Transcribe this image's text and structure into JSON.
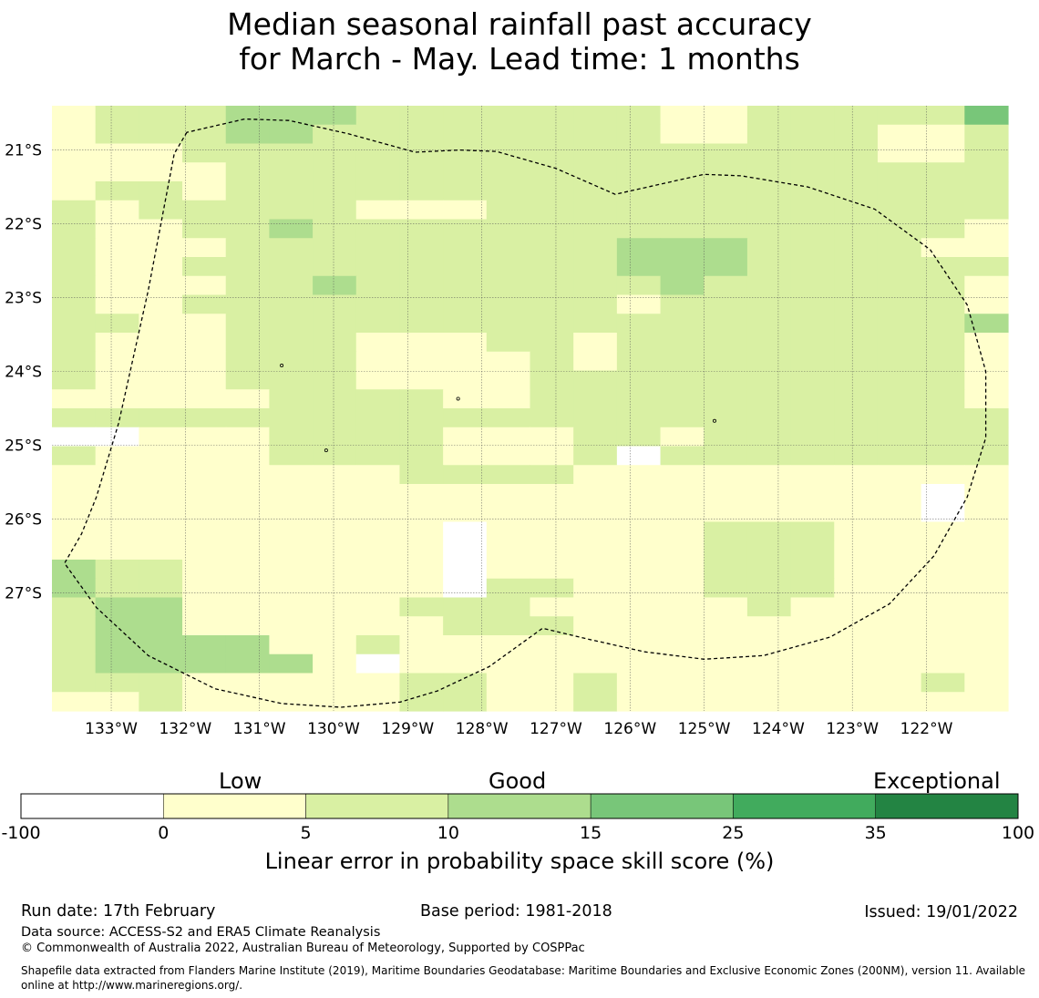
{
  "title_line1": "Median seasonal rainfall past accuracy",
  "title_line2": "for March - May. Lead time: 1 months",
  "map": {
    "lon_range": [
      -133.8,
      -120.9
    ],
    "lat_range": [
      -28.6,
      -20.4
    ],
    "lon_ticks": [
      {
        "value": -133,
        "label": "133°W"
      },
      {
        "value": -132,
        "label": "132°W"
      },
      {
        "value": -131,
        "label": "131°W"
      },
      {
        "value": -130,
        "label": "130°W"
      },
      {
        "value": -129,
        "label": "129°W"
      },
      {
        "value": -128,
        "label": "128°W"
      },
      {
        "value": -127,
        "label": "127°W"
      },
      {
        "value": -126,
        "label": "126°W"
      },
      {
        "value": -125,
        "label": "125°W"
      },
      {
        "value": -124,
        "label": "124°W"
      },
      {
        "value": -123,
        "label": "123°W"
      },
      {
        "value": -122,
        "label": "122°W"
      }
    ],
    "lat_ticks": [
      {
        "value": -21,
        "label": "21°S"
      },
      {
        "value": -22,
        "label": "22°S"
      },
      {
        "value": -23,
        "label": "23°S"
      },
      {
        "value": -24,
        "label": "24°S"
      },
      {
        "value": -25,
        "label": "25°S"
      },
      {
        "value": -26,
        "label": "26°S"
      },
      {
        "value": -27,
        "label": "27°S"
      }
    ],
    "grid_rows_note": "category index per cell: 0 = below 0, 1 = 0-5, 2 = 5-10, 3 = 10-15, 4 = 15-25",
    "grid": [
      "1222333222222211222224",
      "1222332222222211222112",
      "1112222222222222222112",
      "1111222222222222222222",
      "1221222222222222222222",
      "2122222111222222222222",
      "2112232222222222222221",
      "2111222222222333222211",
      "2112222222222333222222",
      "2111223222222232222221",
      "2112222222222122222221",
      "2211222222222222222223",
      "2111222111221222222221",
      "2111222111121222222221",
      "2111222111122222222221",
      "1111122221122222222221",
      "2222222222222222222222",
      "0011122221112212222222",
      "2111122221112022222222",
      "1111111122221111111111",
      "1111111111111111111101",
      "1111111111111111111101",
      "1111111110111112221111",
      "1111111110111112221111",
      "3221111110111112221111",
      "3221111110221112221111",
      "2331111122211111211111",
      "2331111112221111111111",
      "2333311211111111111111",
      "2333331011111111111111",
      "2221111122112111111121",
      "1121111122112111111111"
    ],
    "eez_boundary": [
      [
        -131.98,
        -20.76
      ],
      [
        -132.15,
        -21.05
      ],
      [
        -132.5,
        -22.9
      ],
      [
        -132.9,
        -24.7
      ],
      [
        -133.2,
        -25.7
      ],
      [
        -133.4,
        -26.2
      ],
      [
        -133.63,
        -26.6
      ],
      [
        -133.2,
        -27.2
      ],
      [
        -132.5,
        -27.85
      ],
      [
        -131.6,
        -28.3
      ],
      [
        -130.7,
        -28.5
      ],
      [
        -129.9,
        -28.55
      ],
      [
        -129.1,
        -28.48
      ],
      [
        -128.6,
        -28.33
      ],
      [
        -127.9,
        -28.0
      ],
      [
        -127.18,
        -27.48
      ],
      [
        -126.6,
        -27.62
      ],
      [
        -125.8,
        -27.8
      ],
      [
        -125.0,
        -27.9
      ],
      [
        -124.2,
        -27.85
      ],
      [
        -123.3,
        -27.6
      ],
      [
        -122.5,
        -27.15
      ],
      [
        -121.9,
        -26.5
      ],
      [
        -121.45,
        -25.7
      ],
      [
        -121.2,
        -24.9
      ],
      [
        -121.2,
        -24.0
      ],
      [
        -121.45,
        -23.1
      ],
      [
        -121.95,
        -22.35
      ],
      [
        -122.7,
        -21.8
      ],
      [
        -123.6,
        -21.5
      ],
      [
        -124.5,
        -21.35
      ],
      [
        -125.0,
        -21.33
      ],
      [
        -126.2,
        -21.6
      ],
      [
        -127.0,
        -21.25
      ],
      [
        -127.8,
        -21.02
      ],
      [
        -128.3,
        -21.0
      ],
      [
        -128.9,
        -21.03
      ],
      [
        -129.8,
        -20.78
      ],
      [
        -130.6,
        -20.6
      ],
      [
        -131.2,
        -20.58
      ],
      [
        -131.98,
        -20.76
      ]
    ],
    "islands": [
      [
        -128.32,
        -24.37
      ],
      [
        -124.86,
        -24.67
      ],
      [
        -130.1,
        -25.07
      ],
      [
        -130.7,
        -23.92
      ]
    ]
  },
  "colorbar": {
    "label_low": "Low",
    "label_good": "Good",
    "label_exceptional": "Exceptional",
    "bins": [
      {
        "from": "-100",
        "to": "0",
        "color": "#ffffff"
      },
      {
        "from": "0",
        "to": "5",
        "color": "#ffffcc"
      },
      {
        "from": "5",
        "to": "10",
        "color": "#d9f0a3"
      },
      {
        "from": "10",
        "to": "15",
        "color": "#addd8e"
      },
      {
        "from": "15",
        "to": "25",
        "color": "#78c679"
      },
      {
        "from": "25",
        "to": "35",
        "color": "#41ab5d"
      },
      {
        "from": "35",
        "to": "100",
        "color": "#238443"
      }
    ],
    "ticks": [
      "-100",
      "0",
      "5",
      "10",
      "15",
      "25",
      "35",
      "100"
    ],
    "caption": "Linear error in probability space skill score (%)"
  },
  "footer": {
    "run_date": "Run date: 17th February",
    "base_period": "Base period: 1981-2018",
    "issued": "Issued: 19/01/2022",
    "data_source": "Data source: ACCESS-S2 and ERA5 Climate Reanalysis",
    "copyright": "© Commonwealth of Australia 2022, Australian Bureau of Meteorology, Supported by COSPPac",
    "shapefile": "Shapefile data extracted from Flanders Marine Institute (2019), Maritime Boundaries Geodatabase: Maritime Boundaries and Exclusive Economic Zones (200NM), version 11. Available online at http://www.marineregions.org/."
  }
}
